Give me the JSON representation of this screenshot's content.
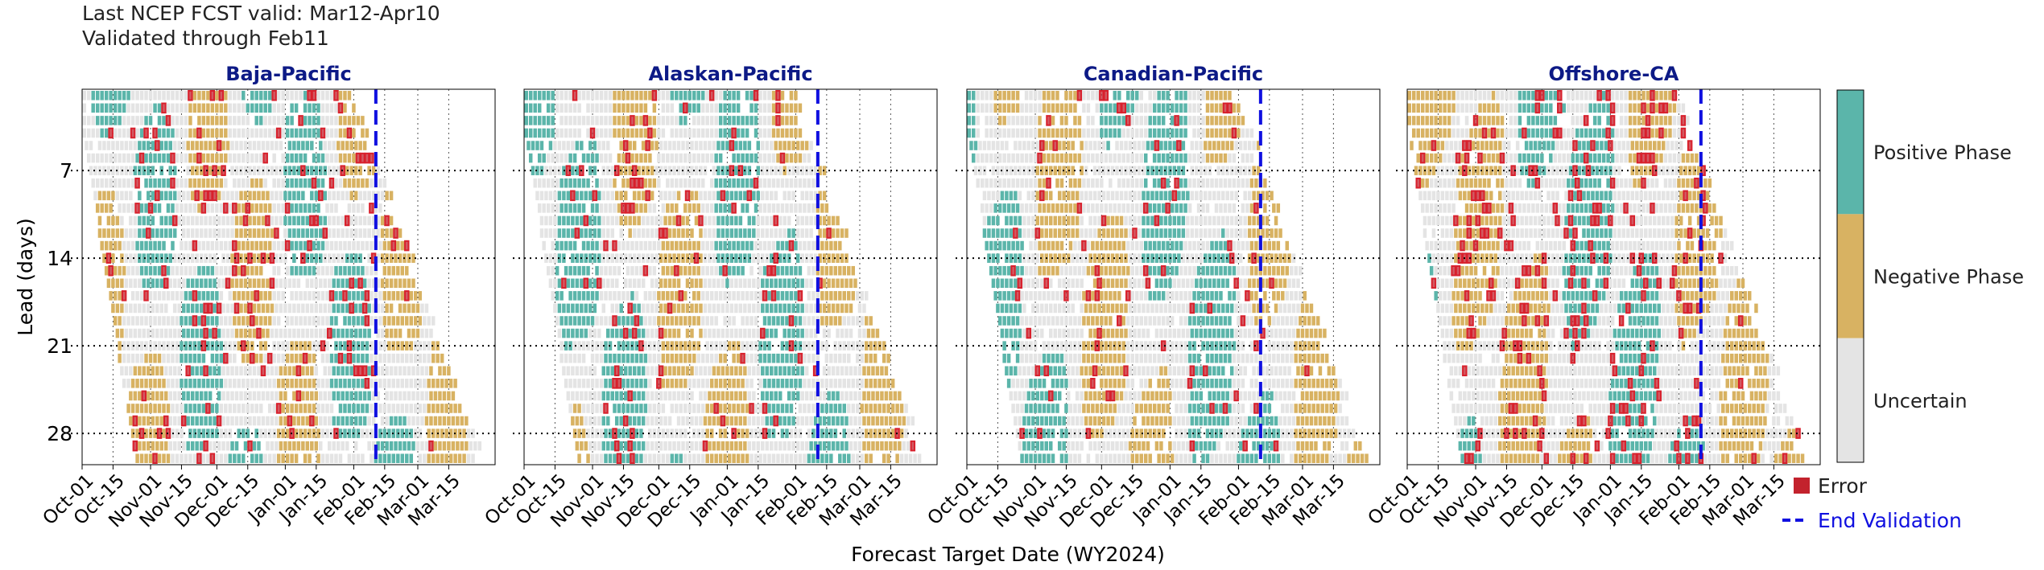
{
  "header": {
    "line1": "Last NCEP FCST valid: Mar12-Apr10",
    "line2": "Validated through Feb11"
  },
  "colors": {
    "positive": "#5bb5aa",
    "negative": "#d8b262",
    "uncertain": "#e4e4e4",
    "error_fill": "#c3222d",
    "error_edge": "#d8202c",
    "validation_line": "#1010e0",
    "title": "#0d1a86"
  },
  "chart_data": {
    "type": "heatmap",
    "xlabel": "Forecast Target Date (WY2024)",
    "ylabel": "Lead (days)",
    "x_ticks": [
      "Oct-01",
      "Oct-15",
      "Nov-01",
      "Nov-15",
      "Dec-01",
      "Dec-15",
      "Jan-01",
      "Jan-15",
      "Feb-01",
      "Feb-15",
      "Mar-01",
      "Mar-15"
    ],
    "y_ticks": [
      7,
      14,
      21,
      28
    ],
    "lead_range": [
      1,
      30
    ],
    "end_validation_date": "Feb-11",
    "grid": true,
    "panels": [
      {
        "title": "Baja-Pacific",
        "error_rate": 0.12
      },
      {
        "title": "Alaskan-Pacific",
        "error_rate": 0.09
      },
      {
        "title": "Canadian-Pacific",
        "error_rate": 0.06
      },
      {
        "title": "Offshore-CA",
        "error_rate": 0.2
      }
    ],
    "colorbar": {
      "labels": [
        "Positive Phase",
        "Negative Phase",
        "Uncertain"
      ]
    },
    "legend": {
      "placement": "bottom-right",
      "entries": [
        {
          "label": "Error",
          "marker": "square"
        },
        {
          "label": "End Validation",
          "marker": "dashed-line"
        }
      ]
    }
  }
}
